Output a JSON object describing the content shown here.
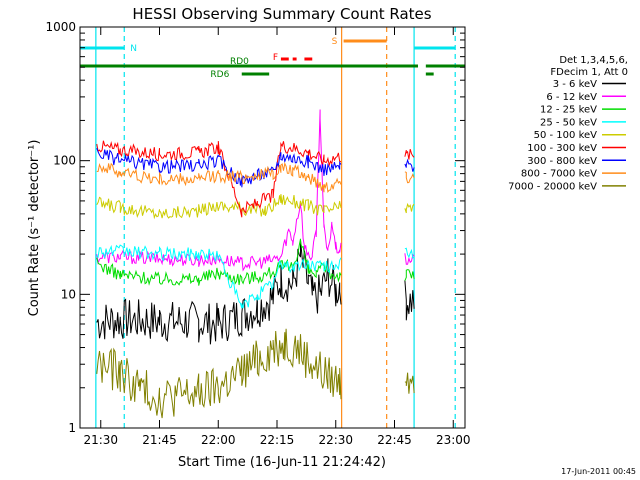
{
  "chart_data": {
    "type": "line",
    "title": "HESSI Observing Summary Count Rates",
    "xlabel": "Start Time (16-Jun-11 21:24:42)",
    "ylabel": "Count Rate (s⁻¹ detector⁻¹)",
    "y_scale": "log",
    "ylim": [
      1,
      1000
    ],
    "xlim": [
      "21:24:42",
      "23:03:00"
    ],
    "x_ticks": [
      "21:30",
      "21:45",
      "22:00",
      "22:15",
      "22:30",
      "22:45",
      "23:00"
    ],
    "y_ticks": [
      "1",
      "10",
      "100",
      "1000"
    ],
    "grid": false,
    "legend_position": "right",
    "legend_header": [
      "Det 1,3,4,5,6,",
      "FDecim 1, Att 0"
    ],
    "footer_timestamp": "17-Jun-2011 00:45",
    "flags": [
      {
        "label": "N",
        "color": "#00e5ee",
        "intervals": [
          [
            "21:24:42",
            "21:36:00"
          ],
          [
            "22:50:00",
            "23:00:30"
          ]
        ]
      },
      {
        "label": "S",
        "color": "#ff8c1a",
        "intervals": [
          [
            "22:32:00",
            "22:43:00"
          ]
        ]
      },
      {
        "label": "F",
        "color": "#ff0000",
        "intervals": [
          [
            "22:16:00",
            "22:18:00"
          ],
          [
            "22:19:00",
            "22:20:00"
          ],
          [
            "22:22:00",
            "22:24:00"
          ]
        ]
      },
      {
        "label": "RD0",
        "color": "#008000",
        "intervals": [
          [
            "21:24:42",
            "22:51:00"
          ],
          [
            "22:53:00",
            "23:03:00"
          ]
        ]
      },
      {
        "label": "RD6",
        "color": "#008000",
        "intervals": [
          [
            "22:06:00",
            "22:13:00"
          ],
          [
            "22:53:00",
            "22:55:00"
          ]
        ]
      }
    ],
    "event_lines": [
      {
        "type": "night_boundary",
        "color": "#00e5ee",
        "dashed": true,
        "x": [
          "21:36:00",
          "23:00:30"
        ]
      },
      {
        "type": "night_boundary",
        "color": "#00e5ee",
        "dashed": false,
        "x": [
          "21:28:45",
          "22:50:00"
        ]
      },
      {
        "type": "saa_boundary",
        "color": "#ff8c1a",
        "dashed": false,
        "x": [
          "22:31:30"
        ]
      },
      {
        "type": "saa_boundary",
        "color": "#ff8c1a",
        "dashed": true,
        "x": [
          "22:43:00"
        ]
      }
    ],
    "series": [
      {
        "name": "3 - 6 keV",
        "color": "#000000",
        "points": [
          [
            "21:29:00",
            6.2
          ],
          [
            "21:35:00",
            6.5
          ],
          [
            "21:45:00",
            6.3
          ],
          [
            "21:55:00",
            6.2
          ],
          [
            "22:00:00",
            6.0
          ],
          [
            "22:06:00",
            7.0
          ],
          [
            "22:10:00",
            8.0
          ],
          [
            "22:14:00",
            9.5
          ],
          [
            "22:16:00",
            13
          ],
          [
            "22:19:00",
            12
          ],
          [
            "22:21:00",
            19
          ],
          [
            "22:23:00",
            12
          ],
          [
            "22:24:00",
            9.5
          ],
          [
            "22:26:00",
            10
          ],
          [
            "22:28:00",
            14
          ],
          [
            "22:30:00",
            10.5
          ],
          [
            "22:31:00",
            12
          ],
          [
            "22:48:00",
            9
          ],
          [
            "22:50:00",
            9
          ]
        ]
      },
      {
        "name": "6 - 12 keV",
        "color": "#ff00ff",
        "points": [
          [
            "21:29:00",
            19
          ],
          [
            "21:35:00",
            19
          ],
          [
            "21:45:00",
            18.5
          ],
          [
            "21:55:00",
            18
          ],
          [
            "22:00:00",
            18.5
          ],
          [
            "22:06:00",
            17
          ],
          [
            "22:12:00",
            17.5
          ],
          [
            "22:16:00",
            19
          ],
          [
            "22:18:00",
            30
          ],
          [
            "22:19:00",
            25
          ],
          [
            "22:21:00",
            50
          ],
          [
            "22:22:00",
            22
          ],
          [
            "22:24:00",
            19
          ],
          [
            "22:25:00",
            30
          ],
          [
            "22:26:00",
            230
          ],
          [
            "22:27:00",
            30
          ],
          [
            "22:28:00",
            20
          ],
          [
            "22:29:00",
            35
          ],
          [
            "22:30:00",
            22
          ],
          [
            "22:31:00",
            22
          ],
          [
            "22:48:00",
            18
          ],
          [
            "22:50:00",
            18
          ]
        ]
      },
      {
        "name": "12 - 25 keV",
        "color": "#00dd00",
        "points": [
          [
            "21:29:00",
            17
          ],
          [
            "21:35:00",
            14
          ],
          [
            "21:45:00",
            13
          ],
          [
            "21:55:00",
            13
          ],
          [
            "22:00:00",
            14.5
          ],
          [
            "22:06:00",
            13
          ],
          [
            "22:12:00",
            14
          ],
          [
            "22:16:00",
            16
          ],
          [
            "22:19:00",
            16
          ],
          [
            "22:21:00",
            25
          ],
          [
            "22:23:00",
            15
          ],
          [
            "22:25:00",
            14
          ],
          [
            "22:27:00",
            16
          ],
          [
            "22:29:00",
            14
          ],
          [
            "22:31:00",
            14
          ],
          [
            "22:48:00",
            14
          ],
          [
            "22:50:00",
            14
          ]
        ]
      },
      {
        "name": "25 - 50 keV",
        "color": "#00ffff",
        "points": [
          [
            "21:29:00",
            21
          ],
          [
            "21:35:00",
            21
          ],
          [
            "21:45:00",
            20
          ],
          [
            "21:55:00",
            20
          ],
          [
            "22:00:00",
            19.5
          ],
          [
            "22:06:00",
            8
          ],
          [
            "22:10:00",
            10
          ],
          [
            "22:14:00",
            12
          ],
          [
            "22:16:00",
            17
          ],
          [
            "22:19:00",
            16
          ],
          [
            "22:23:00",
            17
          ],
          [
            "22:27:00",
            16
          ],
          [
            "22:31:00",
            17
          ],
          [
            "22:48:00",
            20
          ],
          [
            "22:50:00",
            20
          ]
        ]
      },
      {
        "name": "50 - 100 keV",
        "color": "#cccc00",
        "points": [
          [
            "21:29:00",
            48
          ],
          [
            "21:35:00",
            45
          ],
          [
            "21:45:00",
            40
          ],
          [
            "21:55:00",
            42
          ],
          [
            "22:00:00",
            46
          ],
          [
            "22:06:00",
            44
          ],
          [
            "22:12:00",
            42
          ],
          [
            "22:16:00",
            52
          ],
          [
            "22:19:00",
            50
          ],
          [
            "22:23:00",
            46
          ],
          [
            "22:27:00",
            42
          ],
          [
            "22:31:00",
            45
          ],
          [
            "22:48:00",
            44
          ],
          [
            "22:50:00",
            44
          ]
        ]
      },
      {
        "name": "100 - 300 keV",
        "color": "#ff0000",
        "points": [
          [
            "21:29:00",
            130
          ],
          [
            "21:35:00",
            120
          ],
          [
            "21:45:00",
            112
          ],
          [
            "21:55:00",
            115
          ],
          [
            "22:00:00",
            125
          ],
          [
            "22:06:00",
            42
          ],
          [
            "22:10:00",
            48
          ],
          [
            "22:14:00",
            55
          ],
          [
            "22:16:00",
            130
          ],
          [
            "22:19:00",
            125
          ],
          [
            "22:23:00",
            115
          ],
          [
            "22:27:00",
            100
          ],
          [
            "22:31:00",
            108
          ],
          [
            "22:48:00",
            110
          ],
          [
            "22:50:00",
            110
          ]
        ]
      },
      {
        "name": "300 - 800 keV",
        "color": "#0000ff",
        "points": [
          [
            "21:29:00",
            115
          ],
          [
            "21:35:00",
            100
          ],
          [
            "21:45:00",
            90
          ],
          [
            "21:55:00",
            92
          ],
          [
            "22:00:00",
            100
          ],
          [
            "22:06:00",
            70
          ],
          [
            "22:10:00",
            78
          ],
          [
            "22:14:00",
            82
          ],
          [
            "22:16:00",
            110
          ],
          [
            "22:19:00",
            105
          ],
          [
            "22:23:00",
            98
          ],
          [
            "22:27:00",
            86
          ],
          [
            "22:31:00",
            90
          ],
          [
            "22:48:00",
            92
          ],
          [
            "22:50:00",
            92
          ]
        ]
      },
      {
        "name": "800 - 7000 keV",
        "color": "#ff8c1a",
        "points": [
          [
            "21:29:00",
            92
          ],
          [
            "21:35:00",
            82
          ],
          [
            "21:45:00",
            72
          ],
          [
            "21:55:00",
            72
          ],
          [
            "22:00:00",
            78
          ],
          [
            "22:06:00",
            75
          ],
          [
            "22:10:00",
            78
          ],
          [
            "22:14:00",
            80
          ],
          [
            "22:16:00",
            88
          ],
          [
            "22:19:00",
            84
          ],
          [
            "22:23:00",
            76
          ],
          [
            "22:27:00",
            64
          ],
          [
            "22:31:00",
            70
          ],
          [
            "22:48:00",
            76
          ],
          [
            "22:50:00",
            76
          ]
        ]
      },
      {
        "name": "7000 - 20000 keV",
        "color": "#808000",
        "points": [
          [
            "21:29:00",
            3.0
          ],
          [
            "21:35:00",
            2.6
          ],
          [
            "21:40:00",
            2.0
          ],
          [
            "21:45:00",
            1.7
          ],
          [
            "21:55:00",
            1.8
          ],
          [
            "22:00:00",
            2.0
          ],
          [
            "22:06:00",
            2.6
          ],
          [
            "22:10:00",
            3.2
          ],
          [
            "22:14:00",
            4.0
          ],
          [
            "22:17:00",
            4.4
          ],
          [
            "22:20:00",
            4.0
          ],
          [
            "22:24:00",
            3.0
          ],
          [
            "22:28:00",
            2.4
          ],
          [
            "22:31:00",
            2.2
          ],
          [
            "22:48:00",
            2.6
          ],
          [
            "22:50:00",
            2.6
          ]
        ]
      }
    ],
    "data_gaps": [
      [
        "22:31:30",
        "22:47:30"
      ]
    ]
  }
}
